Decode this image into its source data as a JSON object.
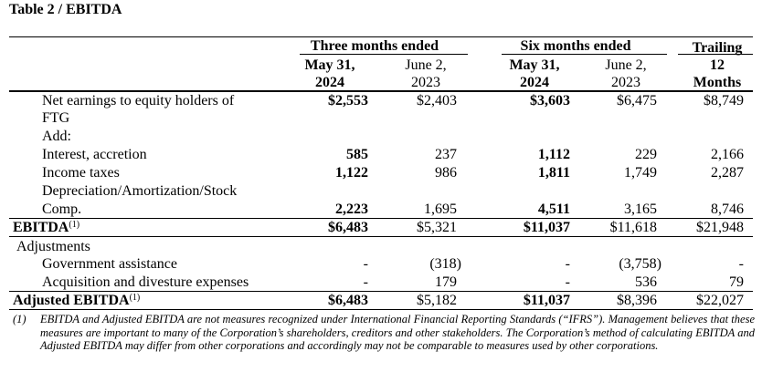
{
  "title": "Table 2 / EBITDA",
  "headers": {
    "three_months": "Three months ended",
    "six_months": "Six months ended",
    "trailing_l1": "Trailing",
    "trailing_l2": "12",
    "trailing_l3": "Months",
    "q_2024_l1": "May 31,",
    "q_2024_l2": "2024",
    "q_2023_l1": "June 2,",
    "q_2023_l2": "2023",
    "s_2024_l1": "May 31,",
    "s_2024_l2": "2024",
    "s_2023_l1": "June 2,",
    "s_2023_l2": "2023"
  },
  "rows": {
    "net_earnings": {
      "label_l1": "Net earnings to equity holders of",
      "label_l2": "FTG",
      "v1": "$2,553",
      "v2": "$2,403",
      "v3": "$3,603",
      "v4": "$6,475",
      "v5": "$8,749"
    },
    "add": {
      "label": "Add:"
    },
    "interest": {
      "label": "Interest, accretion",
      "v1": "585",
      "v2": "237",
      "v3": "1,112",
      "v4": "229",
      "v5": "2,166"
    },
    "income_taxes": {
      "label": "Income taxes",
      "v1": "1,122",
      "v2": "986",
      "v3": "1,811",
      "v4": "1,749",
      "v5": "2,287"
    },
    "depreciation": {
      "label_l1": "Depreciation/Amortization/Stock",
      "label_l2": "Comp.",
      "v1": "2,223",
      "v2": "1,695",
      "v3": "4,511",
      "v4": "3,165",
      "v5": "8,746"
    },
    "ebitda": {
      "label": "EBITDA",
      "note": "(1)",
      "v1": "$6,483",
      "v2": "$5,321",
      "v3": "$11,037",
      "v4": "$11,618",
      "v5": "$21,948"
    },
    "adjustments": {
      "label": "Adjustments"
    },
    "gov_assist": {
      "label": "Government assistance",
      "v1": "-",
      "v2": "(318)",
      "v3": "-",
      "v4": "(3,758)",
      "v5": "-"
    },
    "acquisition": {
      "label": "Acquisition and divesture expenses",
      "v1": "-",
      "v2": "179",
      "v3": "-",
      "v4": "536",
      "v5": "79"
    },
    "adj_ebitda": {
      "label": "Adjusted EBITDA",
      "note": "(1)",
      "v1": "$6,483",
      "v2": "$5,182",
      "v3": "$11,037",
      "v4": "$8,396",
      "v5": "$22,027"
    }
  },
  "footnote": {
    "marker": "(1)",
    "text": "EBITDA and Adjusted EBITDA are not measures recognized under International Financial Reporting Standards (“IFRS”). Management believes that these measures are important to many of the Corporation’s shareholders, creditors and other stakeholders. The Corporation’s method of calculating EBITDA and Adjusted EBITDA may differ from other corporations and accordingly may not be comparable to measures used by other corporations."
  }
}
